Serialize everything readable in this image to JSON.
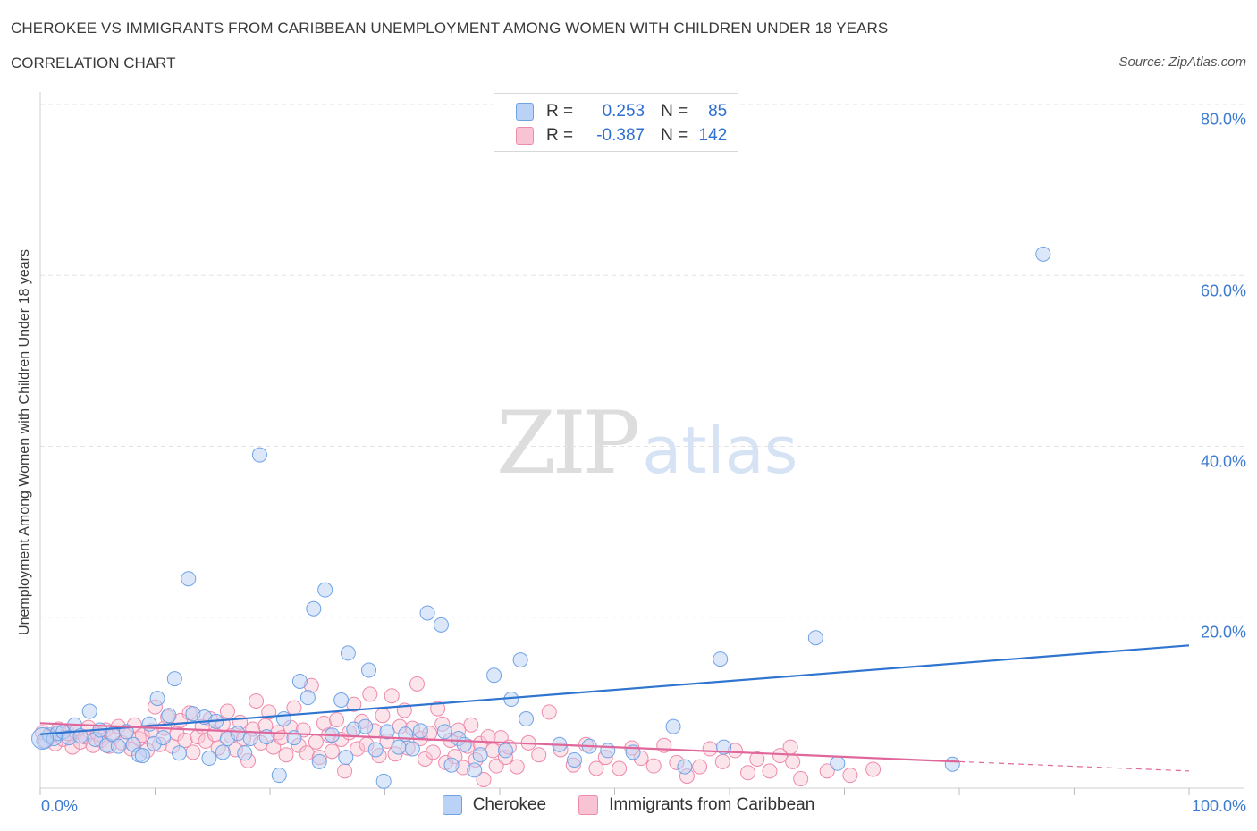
{
  "title": "CHEROKEE VS IMMIGRANTS FROM CARIBBEAN UNEMPLOYMENT AMONG WOMEN WITH CHILDREN UNDER 18 YEARS",
  "subtitle": "CORRELATION CHART",
  "source": "Source: ZipAtlas.com",
  "watermark": {
    "zip": "ZIP",
    "atlas": "atlas"
  },
  "legend": {
    "rows": [
      {
        "r_label": "R =",
        "r_value": "0.253",
        "n_label": "N =",
        "n_value": "85"
      },
      {
        "r_label": "R =",
        "r_value": "-0.387",
        "n_label": "N =",
        "n_value": "142"
      }
    ]
  },
  "colors": {
    "cherokee": "#6fa3e6",
    "cherokee_fill": "#b9d2f5",
    "cherokee_line": "#2f75d0",
    "caribbean": "#ee8aab",
    "caribbean_fill": "#f8c3d3",
    "caribbean_line": "#e0679a",
    "grid": "#e3e3e3",
    "axis_text": "#3d7bd0"
  },
  "chart_data": {
    "type": "scatter",
    "title": "CHEROKEE VS IMMIGRANTS FROM CARIBBEAN UNEMPLOYMENT AMONG WOMEN WITH CHILDREN UNDER 18 YEARS",
    "xlabel": "",
    "ylabel": "Unemployment Among Women with Children Under 18 years",
    "xlim": [
      0,
      100
    ],
    "ylim": [
      0,
      80
    ],
    "x_tick_labels": [
      "0.0%",
      "100.0%"
    ],
    "y_ticks": [
      20,
      40,
      60,
      80
    ],
    "y_tick_labels": [
      "20.0%",
      "40.0%",
      "60.0%",
      "80.0%"
    ],
    "grid": true,
    "legend_position": "top-center",
    "series": [
      {
        "name": "Cherokee",
        "R": 0.253,
        "N": 85,
        "trend": {
          "x": [
            0,
            100
          ],
          "y": [
            6.3,
            16.7
          ]
        },
        "points": [
          [
            0.3,
            5.5
          ],
          [
            0.8,
            6.2
          ],
          [
            1.2,
            5.8
          ],
          [
            1.5,
            6.4
          ],
          [
            2,
            6.6
          ],
          [
            2.5,
            5.9
          ],
          [
            3,
            7.4
          ],
          [
            3.5,
            6.1
          ],
          [
            4.3,
            9.0
          ],
          [
            4.8,
            5.7
          ],
          [
            5.2,
            6.8
          ],
          [
            5.8,
            5.0
          ],
          [
            6.3,
            6.3
          ],
          [
            6.8,
            4.9
          ],
          [
            7.5,
            6.6
          ],
          [
            8.1,
            5.1
          ],
          [
            8.6,
            3.9
          ],
          [
            8.9,
            3.8
          ],
          [
            9.5,
            7.5
          ],
          [
            9.9,
            5.2
          ],
          [
            10.2,
            10.5
          ],
          [
            10.7,
            5.9
          ],
          [
            11.2,
            8.5
          ],
          [
            11.7,
            12.8
          ],
          [
            12.1,
            4.1
          ],
          [
            12.9,
            24.5
          ],
          [
            13.3,
            8.7
          ],
          [
            14.3,
            8.3
          ],
          [
            14.7,
            3.5
          ],
          [
            15.3,
            7.8
          ],
          [
            15.9,
            4.2
          ],
          [
            16.3,
            5.8
          ],
          [
            17.2,
            6.4
          ],
          [
            17.8,
            4.1
          ],
          [
            18.3,
            5.8
          ],
          [
            19.1,
            39.0
          ],
          [
            19.7,
            6.0
          ],
          [
            20.8,
            1.5
          ],
          [
            21.2,
            8.1
          ],
          [
            22.1,
            5.9
          ],
          [
            22.6,
            12.5
          ],
          [
            23.3,
            10.6
          ],
          [
            23.8,
            21.0
          ],
          [
            24.3,
            3.1
          ],
          [
            24.8,
            23.2
          ],
          [
            25.4,
            6.2
          ],
          [
            26.2,
            10.3
          ],
          [
            26.6,
            3.6
          ],
          [
            26.8,
            15.8
          ],
          [
            27.3,
            6.9
          ],
          [
            28.3,
            7.2
          ],
          [
            28.6,
            13.8
          ],
          [
            29.2,
            4.5
          ],
          [
            29.9,
            0.8
          ],
          [
            30.2,
            6.6
          ],
          [
            31.2,
            4.8
          ],
          [
            31.8,
            6.3
          ],
          [
            32.4,
            4.6
          ],
          [
            33.1,
            6.7
          ],
          [
            33.7,
            20.5
          ],
          [
            34.9,
            19.1
          ],
          [
            35.2,
            6.6
          ],
          [
            35.8,
            2.7
          ],
          [
            36.4,
            5.8
          ],
          [
            36.9,
            5.1
          ],
          [
            37.8,
            2.1
          ],
          [
            38.3,
            3.9
          ],
          [
            39.5,
            13.2
          ],
          [
            40.5,
            4.4
          ],
          [
            41.0,
            10.4
          ],
          [
            41.8,
            15.0
          ],
          [
            42.3,
            8.1
          ],
          [
            45.2,
            5.1
          ],
          [
            46.5,
            3.3
          ],
          [
            47.8,
            4.9
          ],
          [
            49.4,
            4.4
          ],
          [
            51.6,
            4.2
          ],
          [
            55.1,
            7.2
          ],
          [
            56.1,
            2.5
          ],
          [
            59.2,
            15.1
          ],
          [
            59.5,
            4.8
          ],
          [
            67.5,
            17.6
          ],
          [
            69.4,
            2.9
          ],
          [
            79.4,
            2.8
          ],
          [
            87.3,
            62.5
          ]
        ]
      },
      {
        "name": "Immigrants from Caribbean",
        "R": -0.387,
        "N": 142,
        "trend": {
          "x": [
            0,
            80
          ],
          "y": [
            7.6,
            3.1
          ]
        },
        "trend_dashed": {
          "x": [
            80,
            100
          ],
          "y": [
            3.1,
            2.0
          ]
        },
        "points": [
          [
            0.2,
            6.5
          ],
          [
            0.5,
            5.5
          ],
          [
            0.9,
            6.0
          ],
          [
            1.3,
            5.2
          ],
          [
            1.6,
            6.9
          ],
          [
            2.0,
            5.7
          ],
          [
            2.4,
            6.4
          ],
          [
            2.8,
            4.8
          ],
          [
            3.1,
            6.6
          ],
          [
            3.5,
            5.4
          ],
          [
            3.9,
            6.0
          ],
          [
            4.2,
            7.1
          ],
          [
            4.6,
            5.0
          ],
          [
            5.0,
            6.3
          ],
          [
            5.3,
            5.6
          ],
          [
            5.7,
            6.8
          ],
          [
            6.0,
            4.9
          ],
          [
            6.4,
            6.1
          ],
          [
            6.8,
            7.2
          ],
          [
            7.1,
            5.3
          ],
          [
            7.5,
            6.6
          ],
          [
            7.9,
            4.6
          ],
          [
            8.2,
            7.4
          ],
          [
            8.6,
            5.8
          ],
          [
            8.9,
            6.2
          ],
          [
            9.3,
            4.4
          ],
          [
            9.7,
            6.7
          ],
          [
            10.0,
            9.5
          ],
          [
            10.4,
            5.1
          ],
          [
            10.8,
            7.0
          ],
          [
            11.1,
            8.3
          ],
          [
            11.5,
            4.9
          ],
          [
            11.9,
            6.4
          ],
          [
            12.2,
            7.9
          ],
          [
            12.6,
            5.6
          ],
          [
            13.0,
            8.8
          ],
          [
            13.3,
            4.2
          ],
          [
            13.7,
            6.0
          ],
          [
            14.1,
            7.2
          ],
          [
            14.4,
            5.5
          ],
          [
            14.8,
            8.1
          ],
          [
            15.2,
            6.3
          ],
          [
            15.5,
            4.7
          ],
          [
            15.9,
            7.5
          ],
          [
            16.3,
            9.0
          ],
          [
            16.6,
            6.1
          ],
          [
            17.0,
            4.5
          ],
          [
            17.4,
            7.7
          ],
          [
            17.7,
            5.8
          ],
          [
            18.1,
            3.2
          ],
          [
            18.5,
            6.9
          ],
          [
            18.8,
            10.2
          ],
          [
            19.2,
            5.3
          ],
          [
            19.6,
            7.3
          ],
          [
            19.9,
            8.9
          ],
          [
            20.3,
            4.8
          ],
          [
            20.7,
            6.5
          ],
          [
            21.0,
            5.9
          ],
          [
            21.4,
            3.9
          ],
          [
            21.8,
            7.1
          ],
          [
            22.1,
            9.4
          ],
          [
            22.5,
            5.0
          ],
          [
            22.9,
            6.8
          ],
          [
            23.2,
            4.1
          ],
          [
            23.6,
            12.0
          ],
          [
            24.0,
            5.4
          ],
          [
            24.3,
            3.6
          ],
          [
            24.7,
            7.6
          ],
          [
            25.1,
            6.2
          ],
          [
            25.4,
            4.3
          ],
          [
            25.8,
            8.0
          ],
          [
            26.2,
            5.7
          ],
          [
            26.5,
            2.0
          ],
          [
            26.9,
            6.5
          ],
          [
            27.3,
            9.8
          ],
          [
            27.6,
            4.6
          ],
          [
            28.0,
            7.8
          ],
          [
            28.4,
            5.1
          ],
          [
            28.7,
            11.0
          ],
          [
            29.1,
            6.7
          ],
          [
            29.5,
            3.8
          ],
          [
            29.8,
            8.5
          ],
          [
            30.2,
            5.5
          ],
          [
            30.6,
            10.8
          ],
          [
            30.9,
            4.0
          ],
          [
            31.3,
            7.2
          ],
          [
            31.7,
            9.1
          ],
          [
            32.0,
            4.7
          ],
          [
            32.4,
            7.0
          ],
          [
            32.8,
            12.2
          ],
          [
            33.1,
            5.8
          ],
          [
            33.5,
            3.4
          ],
          [
            33.9,
            6.4
          ],
          [
            34.2,
            4.2
          ],
          [
            34.6,
            9.3
          ],
          [
            35.0,
            7.5
          ],
          [
            35.3,
            3.0
          ],
          [
            35.7,
            5.6
          ],
          [
            36.1,
            3.7
          ],
          [
            36.4,
            6.8
          ],
          [
            36.8,
            2.4
          ],
          [
            37.2,
            4.9
          ],
          [
            37.5,
            7.4
          ],
          [
            37.9,
            3.3
          ],
          [
            38.3,
            5.2
          ],
          [
            38.6,
            1.0
          ],
          [
            39.0,
            6.0
          ],
          [
            39.4,
            4.4
          ],
          [
            39.7,
            2.6
          ],
          [
            40.1,
            5.9
          ],
          [
            40.5,
            3.6
          ],
          [
            40.8,
            4.8
          ],
          [
            41.5,
            2.5
          ],
          [
            42.5,
            5.3
          ],
          [
            43.4,
            3.9
          ],
          [
            44.3,
            8.9
          ],
          [
            45.3,
            4.5
          ],
          [
            46.4,
            2.7
          ],
          [
            47.5,
            5.1
          ],
          [
            48.4,
            2.3
          ],
          [
            49.2,
            3.6
          ],
          [
            50.4,
            2.3
          ],
          [
            51.5,
            4.7
          ],
          [
            52.3,
            3.5
          ],
          [
            53.4,
            2.6
          ],
          [
            54.3,
            5.0
          ],
          [
            55.4,
            3.0
          ],
          [
            56.3,
            1.4
          ],
          [
            57.4,
            2.5
          ],
          [
            58.3,
            4.6
          ],
          [
            59.4,
            3.1
          ],
          [
            60.5,
            4.4
          ],
          [
            61.6,
            1.8
          ],
          [
            62.4,
            3.4
          ],
          [
            63.5,
            2.0
          ],
          [
            64.4,
            3.8
          ],
          [
            65.3,
            4.8
          ],
          [
            65.5,
            3.1
          ],
          [
            66.2,
            1.1
          ],
          [
            68.5,
            2.0
          ],
          [
            70.5,
            1.5
          ],
          [
            72.5,
            2.2
          ]
        ]
      }
    ]
  },
  "bottom_legend": {
    "cherokee": "Cherokee",
    "caribbean": "Immigrants from Caribbean"
  }
}
